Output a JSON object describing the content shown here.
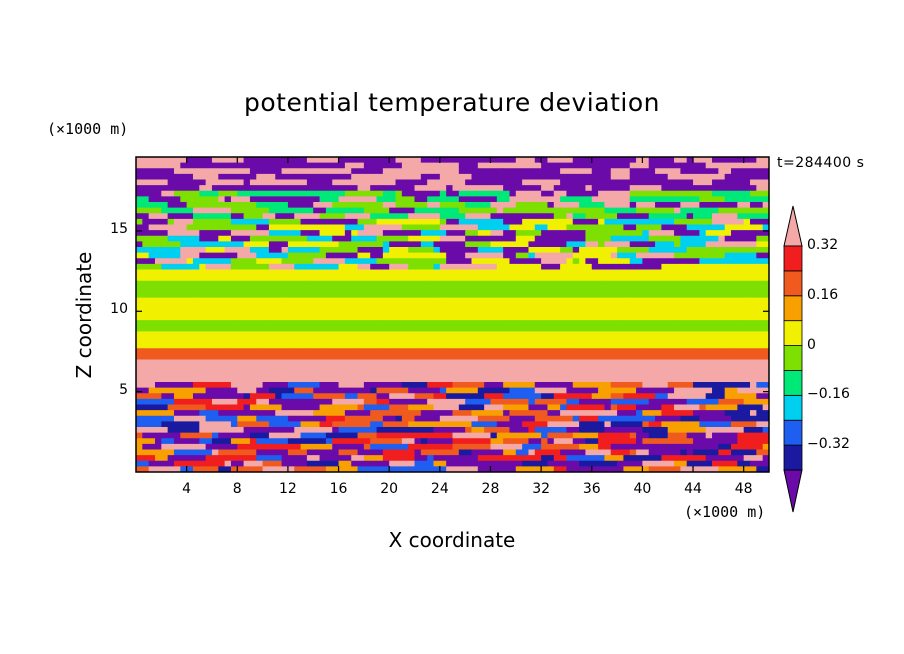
{
  "chart_data": {
    "type": "heatmap",
    "title": "potential temperature deviation",
    "xlabel": "X coordinate",
    "ylabel": "Z coordinate",
    "x_unit": "(×1000 m)",
    "y_unit": "(×1000 m)",
    "time_label": "t=284400 s",
    "xlim": [
      0,
      50
    ],
    "ylim": [
      0,
      19.6
    ],
    "x_ticks": [
      4,
      8,
      12,
      16,
      20,
      24,
      28,
      32,
      36,
      40,
      44,
      48
    ],
    "y_ticks": [
      5,
      10,
      15
    ],
    "colorbar": {
      "levels": [
        -0.4,
        -0.32,
        -0.24,
        -0.16,
        -0.08,
        0,
        0.08,
        0.16,
        0.24,
        0.32,
        0.4
      ],
      "labeled_levels": [
        0.32,
        0.16,
        0,
        -0.16,
        -0.32
      ],
      "labels": [
        "0.32",
        "0.16",
        "0",
        "−0.16",
        "−0.32"
      ],
      "colors_low_to_high": [
        "#6a0aa8",
        "#1a1aa0",
        "#1e5ef0",
        "#00d0f0",
        "#00e878",
        "#7ee000",
        "#f0f000",
        "#f8a000",
        "#f05a1e",
        "#f01e1e",
        "#f4a8a8"
      ],
      "extend": "both"
    }
  }
}
